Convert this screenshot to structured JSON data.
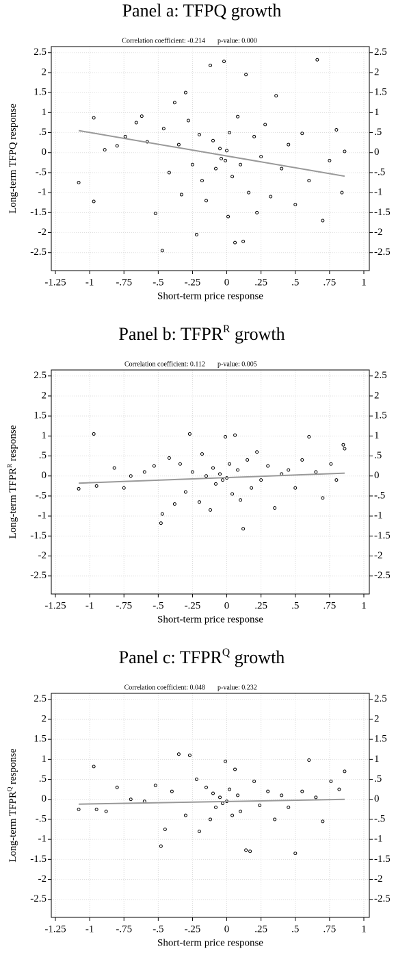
{
  "chart_data": [
    {
      "type": "scatter",
      "title": [
        "Panel a: TFPQ growth"
      ],
      "correlation": "Correlation coefficient: -0.214",
      "p_value": "p-value: 0.000",
      "xlabel": "Short-term price response",
      "ylabel": [
        "Long-term TFPQ response"
      ],
      "xlim": [
        -1.28,
        1.04
      ],
      "ylim": [
        -2.95,
        2.65
      ],
      "grid": true,
      "color": "#000000",
      "xticks": [
        {
          "value": -1.25,
          "label": "-1.25"
        },
        -1,
        {
          "value": -0.75,
          "label": "-.75"
        },
        {
          "value": -0.5,
          "label": "-.5"
        },
        {
          "value": -0.25,
          "label": "-.25"
        },
        0,
        {
          "value": 0.25,
          "label": ".25"
        },
        {
          "value": 0.5,
          "label": ".5"
        },
        {
          "value": 0.75,
          "label": ".75"
        },
        1
      ],
      "yticks": [
        -2.5,
        -2,
        -1.5,
        -1,
        {
          "value": -0.5,
          "label": "-.5"
        },
        0,
        {
          "value": 0.5,
          "label": ".5"
        },
        1,
        1.5,
        2,
        2.5
      ],
      "x": [
        -1.08,
        -0.97,
        -0.97,
        -0.89,
        -0.8,
        -0.74,
        -0.66,
        -0.62,
        -0.58,
        -0.52,
        -0.47,
        -0.46,
        -0.42,
        -0.38,
        -0.35,
        -0.33,
        -0.3,
        -0.28,
        -0.25,
        -0.22,
        -0.2,
        -0.18,
        -0.15,
        -0.12,
        -0.1,
        -0.08,
        -0.05,
        -0.04,
        -0.02,
        -0.01,
        0.0,
        0.01,
        0.02,
        0.04,
        0.06,
        0.08,
        0.1,
        0.12,
        0.14,
        0.16,
        0.2,
        0.22,
        0.25,
        0.28,
        0.32,
        0.36,
        0.4,
        0.45,
        0.5,
        0.55,
        0.6,
        0.66,
        0.7,
        0.75,
        0.8,
        0.84,
        0.86
      ],
      "values": [
        -0.75,
        0.87,
        -1.22,
        0.07,
        0.17,
        0.4,
        0.75,
        0.91,
        0.27,
        -1.52,
        -2.45,
        0.6,
        -0.5,
        1.25,
        0.2,
        -1.05,
        1.5,
        0.8,
        -0.3,
        -2.05,
        0.45,
        -0.7,
        -1.2,
        2.18,
        0.3,
        -0.4,
        0.1,
        -0.15,
        2.28,
        -0.2,
        0.05,
        -1.6,
        0.5,
        -0.6,
        -2.25,
        0.9,
        -0.3,
        -2.22,
        1.95,
        -1.0,
        0.4,
        -1.5,
        -0.1,
        0.7,
        -1.1,
        1.42,
        -0.4,
        0.2,
        -1.3,
        0.48,
        -0.7,
        2.32,
        -1.7,
        -0.2,
        0.57,
        -1.0,
        0.03
      ],
      "fit": {
        "x": [
          -1.08,
          0.86
        ],
        "values": [
          0.55,
          -0.59
        ],
        "color": "#999999"
      }
    },
    {
      "type": "scatter",
      "title": [
        "Panel b: TFPR",
        "R",
        " growth"
      ],
      "correlation": "Correlation coefficient: 0.112",
      "p_value": "p-value: 0.005",
      "xlabel": "Short-term price response",
      "ylabel": [
        "Long-term TFPR",
        "R",
        " response"
      ],
      "xlim": [
        -1.28,
        1.04
      ],
      "ylim": [
        -2.95,
        2.65
      ],
      "grid": true,
      "color": "#000000",
      "xticks": [
        {
          "value": -1.25,
          "label": "-1.25"
        },
        -1,
        {
          "value": -0.75,
          "label": "-.75"
        },
        {
          "value": -0.5,
          "label": "-.5"
        },
        {
          "value": -0.25,
          "label": "-.25"
        },
        0,
        {
          "value": 0.25,
          "label": ".25"
        },
        {
          "value": 0.5,
          "label": ".5"
        },
        {
          "value": 0.75,
          "label": ".75"
        },
        1
      ],
      "yticks": [
        -2.5,
        -2,
        -1.5,
        -1,
        {
          "value": -0.5,
          "label": "-.5"
        },
        0,
        {
          "value": 0.5,
          "label": ".5"
        },
        1,
        1.5,
        2,
        2.5
      ],
      "x": [
        -1.08,
        -0.97,
        -0.95,
        -0.82,
        -0.75,
        -0.7,
        -0.6,
        -0.53,
        -0.48,
        -0.47,
        -0.42,
        -0.38,
        -0.34,
        -0.3,
        -0.27,
        -0.25,
        -0.2,
        -0.18,
        -0.15,
        -0.12,
        -0.1,
        -0.08,
        -0.05,
        -0.03,
        -0.01,
        0.0,
        0.02,
        0.04,
        0.06,
        0.08,
        0.1,
        0.12,
        0.15,
        0.18,
        0.22,
        0.25,
        0.3,
        0.35,
        0.4,
        0.45,
        0.5,
        0.55,
        0.6,
        0.65,
        0.7,
        0.76,
        0.8,
        0.85,
        0.86
      ],
      "values": [
        -0.32,
        1.05,
        -0.25,
        0.2,
        -0.3,
        0.0,
        0.1,
        0.25,
        -1.18,
        -0.95,
        0.45,
        -0.7,
        0.3,
        -0.4,
        1.05,
        0.1,
        -0.65,
        0.55,
        0.0,
        -0.85,
        0.2,
        -0.2,
        0.05,
        -0.1,
        0.98,
        -0.05,
        0.3,
        -0.45,
        1.02,
        0.15,
        -0.6,
        -1.32,
        0.4,
        -0.3,
        0.6,
        -0.1,
        0.25,
        -0.8,
        0.05,
        0.15,
        -0.3,
        0.4,
        0.98,
        0.1,
        -0.55,
        0.3,
        -0.1,
        0.78,
        0.68
      ],
      "fit": {
        "x": [
          -1.08,
          0.86
        ],
        "values": [
          -0.18,
          0.07
        ],
        "color": "#999999"
      }
    },
    {
      "type": "scatter",
      "title": [
        "Panel c: TFPR",
        "Q",
        " growth"
      ],
      "correlation": "Correlation coefficient: 0.048",
      "p_value": "p-value: 0.232",
      "xlabel": "Short-term price response",
      "ylabel": [
        "Long-term TFPR",
        "Q",
        " response"
      ],
      "xlim": [
        -1.28,
        1.04
      ],
      "ylim": [
        -2.95,
        2.65
      ],
      "grid": true,
      "color": "#000000",
      "xticks": [
        {
          "value": -1.25,
          "label": "-1.25"
        },
        -1,
        {
          "value": -0.75,
          "label": "-.75"
        },
        {
          "value": -0.5,
          "label": "-.5"
        },
        {
          "value": -0.25,
          "label": "-.25"
        },
        0,
        {
          "value": 0.25,
          "label": ".25"
        },
        {
          "value": 0.5,
          "label": ".5"
        },
        {
          "value": 0.75,
          "label": ".75"
        },
        1
      ],
      "yticks": [
        -2.5,
        -2,
        -1.5,
        -1,
        {
          "value": -0.5,
          "label": "-.5"
        },
        0,
        {
          "value": 0.5,
          "label": ".5"
        },
        1,
        1.5,
        2,
        2.5
      ],
      "x": [
        -1.08,
        -0.97,
        -0.95,
        -0.88,
        -0.8,
        -0.7,
        -0.6,
        -0.52,
        -0.48,
        -0.45,
        -0.4,
        -0.35,
        -0.3,
        -0.27,
        -0.22,
        -0.2,
        -0.15,
        -0.12,
        -0.1,
        -0.08,
        -0.05,
        -0.03,
        -0.01,
        0.0,
        0.02,
        0.04,
        0.06,
        0.08,
        0.1,
        0.14,
        0.17,
        0.2,
        0.24,
        0.3,
        0.35,
        0.4,
        0.45,
        0.5,
        0.55,
        0.6,
        0.65,
        0.7,
        0.76,
        0.82,
        0.86
      ],
      "values": [
        -0.25,
        0.82,
        -0.25,
        -0.3,
        0.3,
        0.0,
        -0.05,
        0.35,
        -1.17,
        -0.75,
        0.2,
        1.13,
        -0.4,
        1.1,
        0.5,
        -0.8,
        0.3,
        -0.5,
        0.15,
        -0.2,
        0.05,
        -0.1,
        0.95,
        -0.05,
        0.25,
        -0.4,
        0.75,
        0.1,
        -0.3,
        -1.27,
        -1.3,
        0.45,
        -0.15,
        0.2,
        -0.5,
        0.1,
        -0.2,
        -1.35,
        0.2,
        0.98,
        0.05,
        -0.55,
        0.45,
        0.25,
        0.7
      ],
      "fit": {
        "x": [
          -1.08,
          0.86
        ],
        "values": [
          -0.12,
          0.0
        ],
        "color": "#999999"
      }
    }
  ]
}
